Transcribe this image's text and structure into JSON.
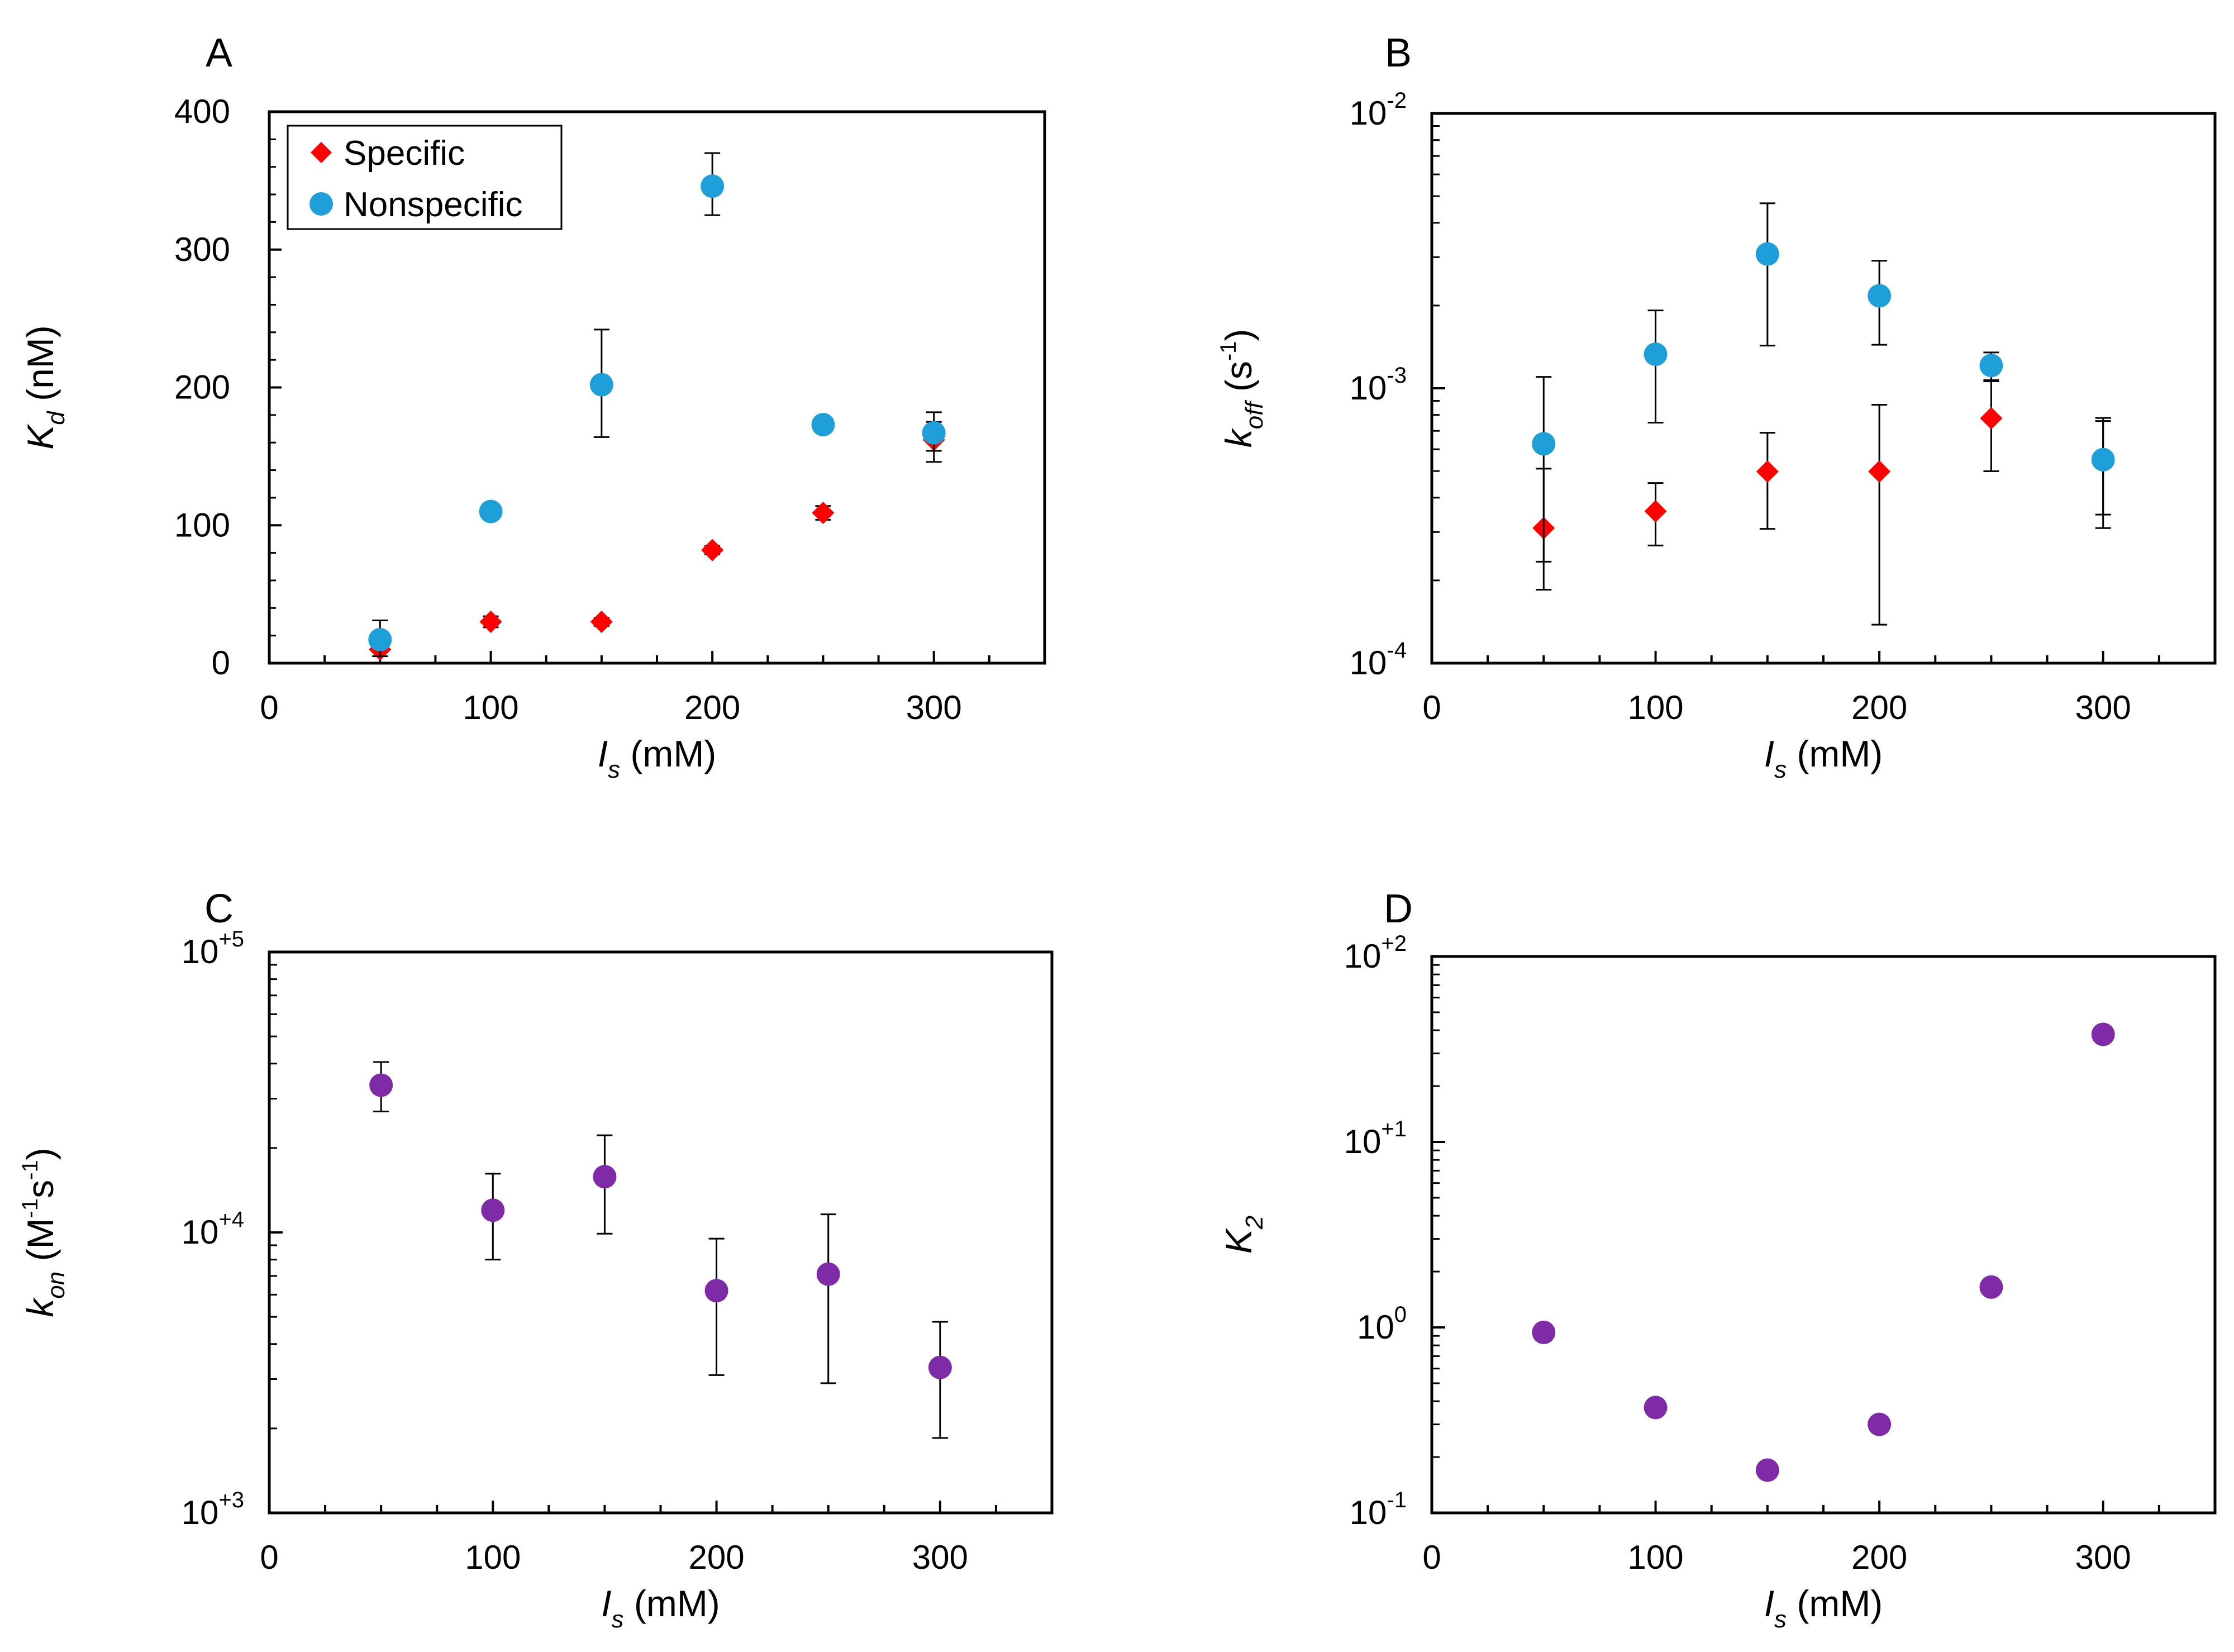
{
  "chart_data": [
    {
      "panel": "A",
      "type": "scatter",
      "xlabel": {
        "var": "I",
        "sub": "s",
        "unit": "(mM)"
      },
      "ylabel": {
        "var": "K",
        "sub": "d",
        "unit": "(nM)"
      },
      "xlim": [
        0,
        350
      ],
      "ylim": [
        0,
        400
      ],
      "yscale": "linear",
      "xticks": [
        0,
        100,
        200,
        300
      ],
      "yticks": [
        0,
        100,
        200,
        300,
        400
      ],
      "legend": "top-left",
      "series": [
        {
          "name": "Specific",
          "marker": "diamond",
          "color": "#ff0000",
          "points": [
            {
              "x": 50,
              "y": 10,
              "lo": 8,
              "hi": 12
            },
            {
              "x": 100,
              "y": 30,
              "lo": 26,
              "hi": 34
            },
            {
              "x": 150,
              "y": 30,
              "lo": 27,
              "hi": 33
            },
            {
              "x": 200,
              "y": 82,
              "lo": 79,
              "hi": 85
            },
            {
              "x": 250,
              "y": 109,
              "lo": 104,
              "hi": 114
            },
            {
              "x": 300,
              "y": 162,
              "lo": 146,
              "hi": 175
            }
          ]
        },
        {
          "name": "Nonspecific",
          "marker": "circle",
          "color": "#1f9fd9",
          "points": [
            {
              "x": 50,
              "y": 17,
              "lo": 5,
              "hi": 31
            },
            {
              "x": 100,
              "y": 110,
              "lo": 108,
              "hi": 112
            },
            {
              "x": 150,
              "y": 202,
              "lo": 164,
              "hi": 242
            },
            {
              "x": 200,
              "y": 346,
              "lo": 325,
              "hi": 370
            },
            {
              "x": 250,
              "y": 173,
              "lo": 171,
              "hi": 175
            },
            {
              "x": 300,
              "y": 167,
              "lo": 154,
              "hi": 182
            }
          ]
        }
      ]
    },
    {
      "panel": "B",
      "type": "scatter",
      "xlabel": {
        "var": "I",
        "sub": "s",
        "unit": "(mM)"
      },
      "ylabel": {
        "var": "k",
        "sub": "off",
        "unit": "(s",
        "unit_sup": "-1",
        "unit_end": ")"
      },
      "xlim": [
        0,
        350
      ],
      "ylim": [
        0.0001,
        0.01
      ],
      "yscale": "log",
      "xticks": [
        0,
        100,
        200,
        300
      ],
      "yticks": [
        {
          "value": 0.01,
          "base": "10",
          "exp": "-2"
        },
        {
          "value": 0.001,
          "base": "10",
          "exp": "-3"
        },
        {
          "value": 0.0001,
          "base": "10",
          "exp": "-4"
        }
      ],
      "series": [
        {
          "marker": "diamond",
          "color": "#ff0000",
          "points": [
            {
              "x": 50,
              "y": 0.00031,
              "lo": 0.000185,
              "hi": 0.00051
            },
            {
              "x": 100,
              "y": 0.000357,
              "lo": 0.000268,
              "hi": 0.000452
            },
            {
              "x": 150,
              "y": 0.000498,
              "lo": 0.000308,
              "hi": 0.000689
            },
            {
              "x": 200,
              "y": 0.000498,
              "lo": 0.000138,
              "hi": 0.000871
            },
            {
              "x": 250,
              "y": 0.000778,
              "lo": 0.000499,
              "hi": 0.00106
            },
            {
              "x": 300,
              "y": 0.000549,
              "lo": 0.000347,
              "hi": 0.00076
            }
          ]
        },
        {
          "marker": "circle",
          "color": "#1f9fd9",
          "points": [
            {
              "x": 50,
              "y": 0.000628,
              "lo": 0.000234,
              "hi": 0.0011
            },
            {
              "x": 100,
              "y": 0.00133,
              "lo": 0.00075,
              "hi": 0.00192
            },
            {
              "x": 150,
              "y": 0.00308,
              "lo": 0.00143,
              "hi": 0.00471
            },
            {
              "x": 200,
              "y": 0.00217,
              "lo": 0.00144,
              "hi": 0.00291
            },
            {
              "x": 250,
              "y": 0.00121,
              "lo": 0.00107,
              "hi": 0.00135
            },
            {
              "x": 300,
              "y": 0.00055,
              "lo": 0.00031,
              "hi": 0.00078
            }
          ]
        }
      ]
    },
    {
      "panel": "C",
      "type": "scatter",
      "xlabel": {
        "var": "I",
        "sub": "s",
        "unit": "(mM)"
      },
      "ylabel": {
        "var": "k",
        "sub": "on",
        "unit": "(M",
        "unit_sup": "-1",
        "unit_mid": "s",
        "unit_sup2": "-1",
        "unit_end": ")"
      },
      "xlim": [
        0,
        350
      ],
      "ylim": [
        1000,
        100000
      ],
      "yscale": "log",
      "xticks": [
        0,
        100,
        200,
        300
      ],
      "yticks": [
        {
          "value": 100000,
          "base": "10",
          "exp": "+5"
        },
        {
          "value": 10000,
          "base": "10",
          "exp": "+4"
        },
        {
          "value": 1000,
          "base": "10",
          "exp": "+3"
        }
      ],
      "series": [
        {
          "marker": "circle",
          "color": "#7f2aa6",
          "points": [
            {
              "x": 50,
              "y": 33500,
              "lo": 27000,
              "hi": 40500
            },
            {
              "x": 100,
              "y": 12000,
              "lo": 8000,
              "hi": 16200
            },
            {
              "x": 150,
              "y": 15800,
              "lo": 9900,
              "hi": 22200
            },
            {
              "x": 200,
              "y": 6200,
              "lo": 3100,
              "hi": 9500
            },
            {
              "x": 250,
              "y": 7100,
              "lo": 2900,
              "hi": 11600
            },
            {
              "x": 300,
              "y": 3300,
              "lo": 1850,
              "hi": 4800
            }
          ]
        }
      ]
    },
    {
      "panel": "D",
      "type": "scatter",
      "xlabel": {
        "var": "I",
        "sub": "s",
        "unit": "(mM)"
      },
      "ylabel": {
        "var": "K",
        "sub": "2",
        "unit": ""
      },
      "xlim": [
        0,
        350
      ],
      "ylim": [
        0.1,
        100
      ],
      "yscale": "log",
      "xticks": [
        0,
        100,
        200,
        300
      ],
      "yticks": [
        {
          "value": 100,
          "base": "10",
          "exp": "+2"
        },
        {
          "value": 10,
          "base": "10",
          "exp": "+1"
        },
        {
          "value": 1,
          "base": "10",
          "exp": "0"
        },
        {
          "value": 0.1,
          "base": "10",
          "exp": "-1"
        }
      ],
      "series": [
        {
          "marker": "circle",
          "color": "#7f2aa6",
          "points": [
            {
              "x": 50,
              "y": 0.94
            },
            {
              "x": 100,
              "y": 0.37
            },
            {
              "x": 150,
              "y": 0.17
            },
            {
              "x": 200,
              "y": 0.3
            },
            {
              "x": 250,
              "y": 1.65
            },
            {
              "x": 300,
              "y": 38
            }
          ]
        }
      ]
    }
  ]
}
